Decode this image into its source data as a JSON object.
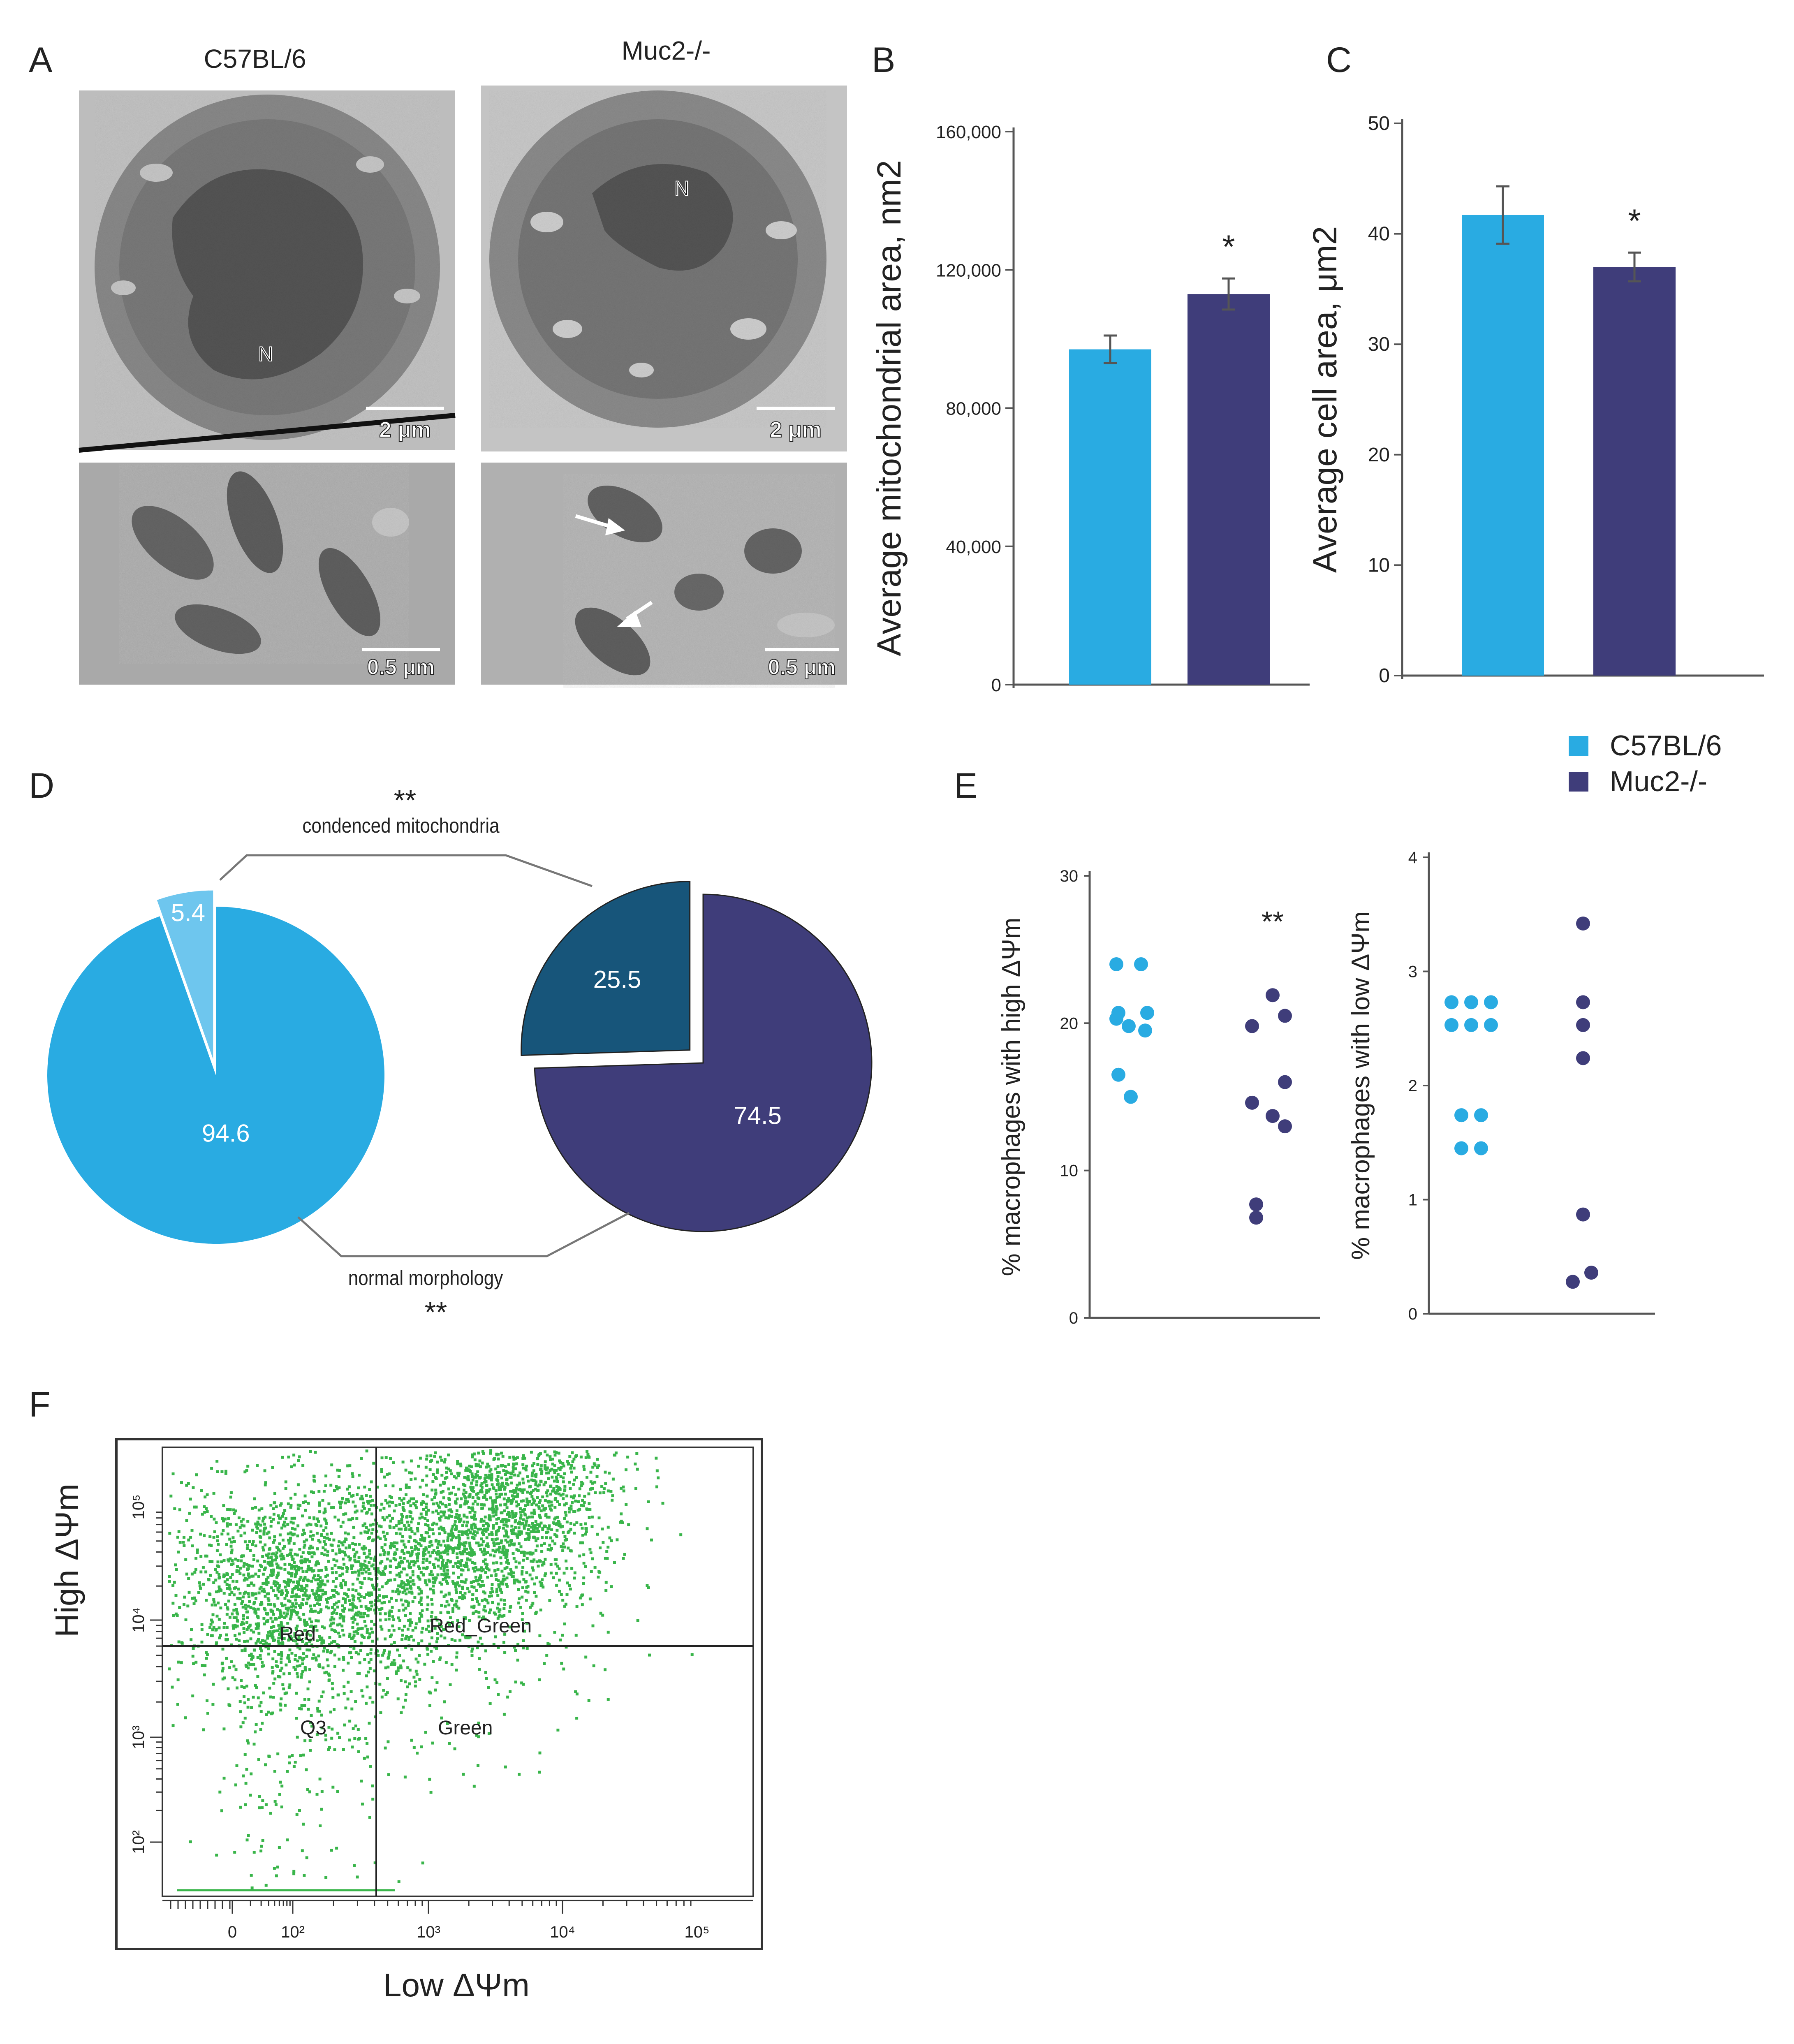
{
  "colors": {
    "wt": "#29abe2",
    "ko": "#3f3d7a",
    "wt_light": "#6ec6ee",
    "ko_dark": "#17557a",
    "flow": "#39b54a",
    "axis": "#555555",
    "tem_bg": "#b9b9b9",
    "tem_dark": "#5a5a5a"
  },
  "panel_letters": [
    "A",
    "B",
    "C",
    "D",
    "E",
    "F"
  ],
  "legend": {
    "items": [
      {
        "label": "C57BL/6",
        "color": "#29abe2"
      },
      {
        "label": "Muc2-/-",
        "color": "#3f3d7a"
      }
    ]
  },
  "panelA": {
    "col_titles": [
      "C57BL/6",
      "Muc2-/-"
    ],
    "images": [
      {
        "id": "wt-cell",
        "scale": "2 μm",
        "label": "N"
      },
      {
        "id": "ko-cell",
        "scale": "2 μm",
        "label": "N"
      },
      {
        "id": "wt-mito",
        "scale": "0.5 μm"
      },
      {
        "id": "ko-mito",
        "scale": "0.5 μm"
      }
    ]
  },
  "chart_data": [
    {
      "panel": "B",
      "type": "bar",
      "categories": [
        "C57BL/6",
        "Muc2-/-"
      ],
      "values": [
        97000,
        113000
      ],
      "errors": [
        4000,
        4500
      ],
      "ylabel": "Average mitochondrial area, nm2",
      "ylim": [
        0,
        160000
      ],
      "yticks": [
        0,
        40000,
        80000,
        120000,
        160000
      ],
      "ytick_labels": [
        "0",
        "40,000",
        "80,000",
        "120,000",
        "160,000"
      ],
      "significance": [
        "",
        "*"
      ]
    },
    {
      "panel": "C",
      "type": "bar",
      "categories": [
        "C57BL/6",
        "Muc2-/-"
      ],
      "values": [
        41.7,
        37.0
      ],
      "errors": [
        2.6,
        1.3
      ],
      "ylabel": "Average cell area, μm2",
      "ylim": [
        0,
        50
      ],
      "yticks": [
        0,
        10,
        20,
        30,
        40,
        50
      ],
      "ytick_labels": [
        "0",
        "10",
        "20",
        "30",
        "40",
        "50"
      ],
      "significance": [
        "",
        "*"
      ]
    },
    {
      "panel": "D",
      "type": "pie",
      "pies": [
        {
          "group": "C57BL/6",
          "slices": [
            {
              "label": "94.6",
              "value": 94.6,
              "color": "#29abe2"
            },
            {
              "label": "5.4",
              "value": 5.4,
              "color": "#6ec6ee",
              "exploded": true
            }
          ]
        },
        {
          "group": "Muc2-/-",
          "slices": [
            {
              "label": "74.5",
              "value": 74.5,
              "color": "#3f3d7a"
            },
            {
              "label": "25.5",
              "value": 25.5,
              "color": "#17557a",
              "exploded": true
            }
          ]
        }
      ],
      "annotations": [
        {
          "text": "condenced mitochondria",
          "stars": "**"
        },
        {
          "text": "normal morphology",
          "stars": "**"
        }
      ]
    },
    {
      "panel": "E-left",
      "type": "scatter",
      "ylabel": "% macrophages with high  ΔΨm",
      "ylim": [
        0,
        30
      ],
      "yticks": [
        0,
        10,
        20,
        30
      ],
      "significance": "**",
      "groups": [
        {
          "name": "C57BL/6",
          "values": [
            24,
            24,
            20.3,
            20.7,
            20.7,
            19.8,
            19.5,
            16.5,
            15
          ]
        },
        {
          "name": "Muc2-/-",
          "values": [
            21.9,
            20.5,
            19.8,
            16,
            14.6,
            13.7,
            13,
            7.7,
            6.8
          ]
        }
      ]
    },
    {
      "panel": "E-right",
      "type": "scatter",
      "ylabel": "% macrophages with low  ΔΨm",
      "ylim": [
        0,
        4
      ],
      "yticks": [
        0,
        1,
        2,
        3,
        4
      ],
      "groups": [
        {
          "name": "C57BL/6",
          "values": [
            2.73,
            2.73,
            2.73,
            2.53,
            2.53,
            2.53,
            1.74,
            1.74,
            1.45,
            1.45
          ]
        },
        {
          "name": "Muc2-/-",
          "values": [
            3.42,
            2.73,
            2.53,
            2.24,
            0.87,
            0.36,
            0.28
          ]
        }
      ]
    },
    {
      "panel": "F",
      "type": "scatter",
      "xlabel": "Low ΔΨm",
      "ylabel": "High ΔΨm",
      "x_scale": "log",
      "xtick_labels": [
        "0",
        "10²",
        "10³",
        "10⁴",
        "10⁵"
      ],
      "ytick_labels": [
        "10²",
        "10³",
        "10⁴",
        "10⁵"
      ],
      "quadrants": [
        "Red",
        "Red_Green",
        "Q3",
        "Green"
      ],
      "populations": [
        {
          "name": "Red",
          "center": [
            60,
            18000
          ],
          "density": "high"
        },
        {
          "name": "Red_Green",
          "center": [
            3000,
            60000
          ],
          "density": "very high"
        },
        {
          "name": "Q3",
          "center": [
            100,
            800
          ],
          "density": "low"
        }
      ]
    }
  ]
}
